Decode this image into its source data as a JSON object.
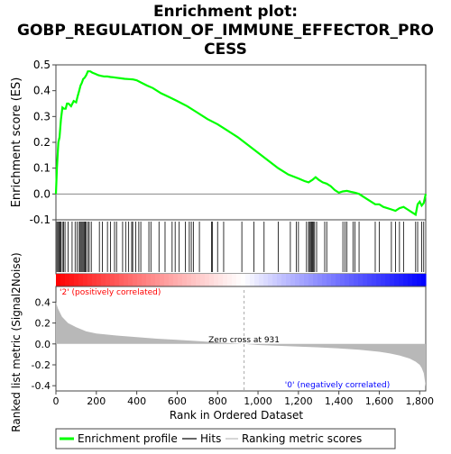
{
  "chart_data": {
    "type": "line",
    "title_lines": [
      "Enrichment plot:",
      "GOBP_REGULATION_OF_IMMUNE_EFFECTOR_PRO",
      "CESS"
    ],
    "top_panel": {
      "ylabel": "Enrichment score (ES)",
      "ylim": [
        -0.1,
        0.5
      ],
      "yticks": [
        "-0.1",
        "0.0",
        "0.1",
        "0.2",
        "0.3",
        "0.4",
        "0.5"
      ],
      "series": [
        {
          "name": "Enrichment profile",
          "color": "#00ff00",
          "x": [
            0,
            5,
            12,
            18,
            25,
            32,
            40,
            48,
            55,
            62,
            75,
            88,
            100,
            108,
            115,
            122,
            128,
            135,
            142,
            150,
            158,
            170,
            180,
            195,
            210,
            225,
            240,
            255,
            270,
            285,
            300,
            320,
            340,
            360,
            380,
            400,
            420,
            450,
            480,
            520,
            560,
            600,
            650,
            700,
            750,
            800,
            850,
            900,
            950,
            1000,
            1050,
            1100,
            1150,
            1200,
            1230,
            1250,
            1270,
            1285,
            1300,
            1320,
            1340,
            1360,
            1380,
            1400,
            1420,
            1440,
            1460,
            1480,
            1500,
            1520,
            1540,
            1560,
            1580,
            1600,
            1620,
            1640,
            1660,
            1680,
            1700,
            1720,
            1740,
            1760,
            1780,
            1790,
            1800,
            1810,
            1820,
            1830
          ],
          "y": [
            0.0,
            0.1,
            0.2,
            0.22,
            0.29,
            0.335,
            0.33,
            0.33,
            0.35,
            0.35,
            0.34,
            0.36,
            0.355,
            0.38,
            0.4,
            0.42,
            0.43,
            0.445,
            0.45,
            0.46,
            0.475,
            0.475,
            0.47,
            0.465,
            0.46,
            0.457,
            0.455,
            0.455,
            0.453,
            0.452,
            0.45,
            0.448,
            0.446,
            0.445,
            0.444,
            0.44,
            0.432,
            0.42,
            0.41,
            0.39,
            0.375,
            0.36,
            0.34,
            0.315,
            0.29,
            0.27,
            0.245,
            0.22,
            0.19,
            0.16,
            0.13,
            0.1,
            0.075,
            0.06,
            0.05,
            0.045,
            0.055,
            0.065,
            0.055,
            0.045,
            0.04,
            0.03,
            0.015,
            0.005,
            0.01,
            0.012,
            0.008,
            0.005,
            0.0,
            -0.01,
            -0.02,
            -0.03,
            -0.04,
            -0.04,
            -0.05,
            -0.055,
            -0.06,
            -0.065,
            -0.055,
            -0.05,
            -0.06,
            -0.07,
            -0.08,
            -0.04,
            -0.03,
            -0.045,
            -0.035,
            0.0
          ]
        }
      ]
    },
    "hits": [
      5,
      10,
      15,
      20,
      25,
      32,
      38,
      45,
      60,
      80,
      95,
      105,
      115,
      120,
      125,
      130,
      135,
      140,
      145,
      150,
      158,
      165,
      175,
      215,
      230,
      255,
      270,
      290,
      300,
      330,
      345,
      360,
      375,
      380,
      395,
      410,
      420,
      460,
      470,
      510,
      540,
      575,
      590,
      610,
      640,
      660,
      670,
      680,
      710,
      770,
      775,
      800,
      830,
      920,
      980,
      1030,
      1100,
      1160,
      1190,
      1200,
      1240,
      1250,
      1255,
      1260,
      1265,
      1270,
      1275,
      1280,
      1290,
      1330,
      1340,
      1420,
      1430,
      1440,
      1470,
      1480,
      1500,
      1580,
      1600,
      1660,
      1680,
      1700,
      1720,
      1780,
      1790,
      1810,
      1820
    ],
    "metric_panel": {
      "ylabel": "Ranked list metric (Signal2Noise)",
      "ylim": [
        -0.45,
        0.55
      ],
      "yticks": [
        "-0.4",
        "-0.2",
        "0.0",
        "0.2",
        "0.4"
      ],
      "x": [
        0,
        10,
        30,
        60,
        100,
        150,
        200,
        300,
        400,
        500,
        600,
        700,
        800,
        931,
        1000,
        1100,
        1200,
        1300,
        1400,
        1500,
        1600,
        1650,
        1700,
        1750,
        1780,
        1800,
        1810,
        1820,
        1830
      ],
      "y": [
        0.4,
        0.34,
        0.26,
        0.2,
        0.16,
        0.12,
        0.1,
        0.08,
        0.065,
        0.05,
        0.04,
        0.028,
        0.015,
        0.0,
        -0.01,
        -0.018,
        -0.025,
        -0.033,
        -0.043,
        -0.055,
        -0.075,
        -0.09,
        -0.11,
        -0.14,
        -0.17,
        -0.2,
        -0.23,
        -0.28,
        -0.41
      ],
      "zero_cross_label": "Zero cross at 931",
      "zero_cross_x": 931,
      "pos_label": "'2' (positively correlated)",
      "neg_label": "'0' (negatively correlated)"
    },
    "xlabel": "Rank in Ordered Dataset",
    "xlim": [
      0,
      1830
    ],
    "xticks": [
      "0",
      "200",
      "400",
      "600",
      "800",
      "1,000",
      "1,200",
      "1,400",
      "1,600",
      "1,800"
    ],
    "legend": {
      "placement": "bottom",
      "items": [
        "Enrichment profile",
        "Hits",
        "Ranking metric scores"
      ]
    },
    "colors": {
      "es_line": "#00ff00",
      "pos": "#ff0000",
      "neg": "#0000ff",
      "metric_fill": "#b8b8b8"
    }
  }
}
